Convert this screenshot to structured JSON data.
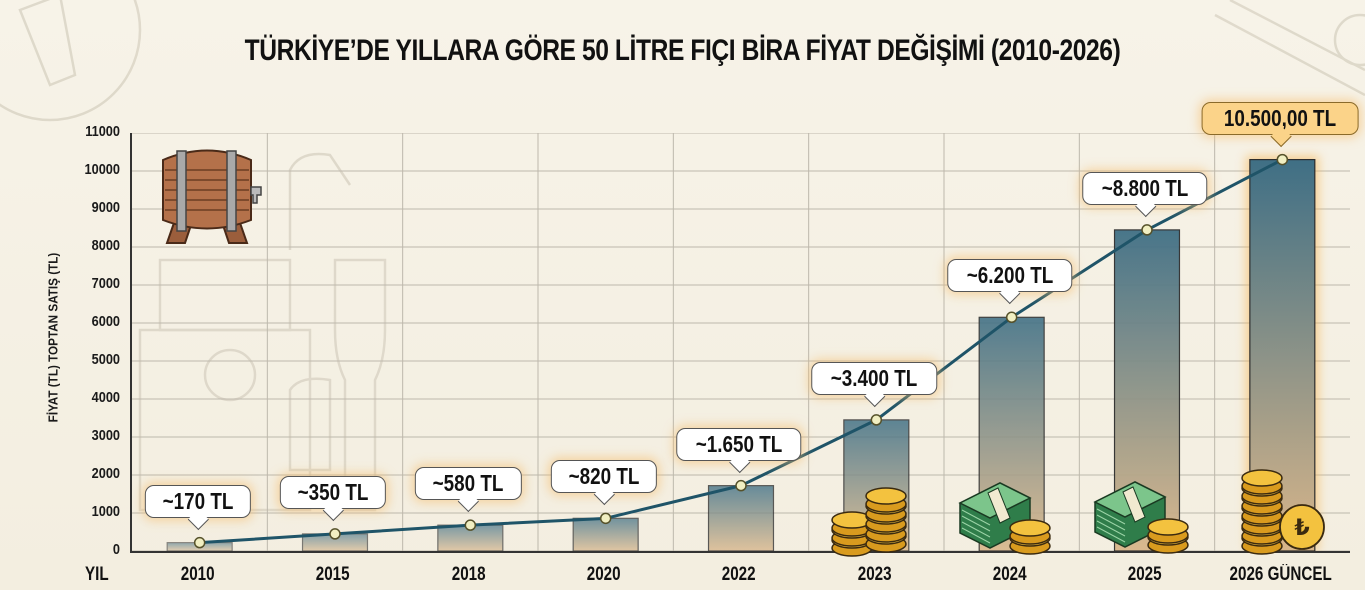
{
  "title": "TÜRKİYE’DE YILLARA GÖRE 50 LİTRE FIÇI BİRA FİYAT DEĞİŞİMİ (2010-2026)",
  "chart_data": {
    "type": "bar",
    "title": "TÜRKİYE’DE YILLARA GÖRE 50 LİTRE FIÇI BİRA FİYAT DEĞİŞİMİ (2010-2026)",
    "xlabel": "YIL",
    "ylabel": "FİYAT (TL) TOPTAN SATIŞ (TL)",
    "ylim": [
      0,
      11000
    ],
    "yticks": [
      0,
      1000,
      2000,
      3000,
      4000,
      5000,
      6000,
      7000,
      8000,
      9000,
      10000,
      11000
    ],
    "grid": true,
    "categories": [
      "2010",
      "2015",
      "2018",
      "2020",
      "2022",
      "2023",
      "2024",
      "2025",
      "2026 GÜNCEL"
    ],
    "values": [
      170,
      350,
      580,
      820,
      1650,
      3400,
      6200,
      8800,
      10500
    ],
    "bar_heights_approx": [
      220,
      450,
      680,
      860,
      1720,
      3450,
      6150,
      8450,
      10300
    ],
    "data_labels": [
      "~170 TL",
      "~350 TL",
      "~580 TL",
      "~820 TL",
      "~1.650 TL",
      "~3.400 TL",
      "~6.200 TL",
      "~8.800 TL",
      "10.500,00 TL"
    ],
    "overlay_line": true,
    "highlighted_category": "2026 GÜNCEL",
    "legend": null
  },
  "axis": {
    "y_label": "FİYAT (TL) TOPTAN SATIŞ (TL)",
    "x_label": "YIL",
    "y_ticks": [
      "0",
      "1000",
      "2000",
      "3000",
      "4000",
      "5000",
      "6000",
      "7000",
      "8000",
      "9000",
      "10000",
      "11000"
    ]
  },
  "bars": [
    {
      "year": "2010",
      "label": "~170 TL",
      "value": 170,
      "bar": 220
    },
    {
      "year": "2015",
      "label": "~350 TL",
      "value": 350,
      "bar": 450
    },
    {
      "year": "2018",
      "label": "~580 TL",
      "value": 580,
      "bar": 680
    },
    {
      "year": "2020",
      "label": "~820 TL",
      "value": 820,
      "bar": 860
    },
    {
      "year": "2022",
      "label": "~1.650 TL",
      "value": 1650,
      "bar": 1720
    },
    {
      "year": "2023",
      "label": "~3.400 TL",
      "value": 3400,
      "bar": 3450
    },
    {
      "year": "2024",
      "label": "~6.200 TL",
      "value": 6200,
      "bar": 6150
    },
    {
      "year": "2025",
      "label": "~8.800 TL",
      "value": 8800,
      "bar": 8450
    },
    {
      "year": "2026 GÜNCEL",
      "label": "10.500,00 TL",
      "value": 10500,
      "bar": 10300
    }
  ],
  "icons": {
    "barrel": "beer-barrel-icon",
    "coins": "lira-coins-icon",
    "cash": "cash-stack-icon",
    "lira_symbol": "₺"
  },
  "colors": {
    "background": "#f5f0e3",
    "bar_top": "#3f6f85",
    "bar_bottom": "#d9b68a",
    "line": "#1f5468",
    "highlight_callout": "#fbd389",
    "grid": "#bdb8ac"
  }
}
